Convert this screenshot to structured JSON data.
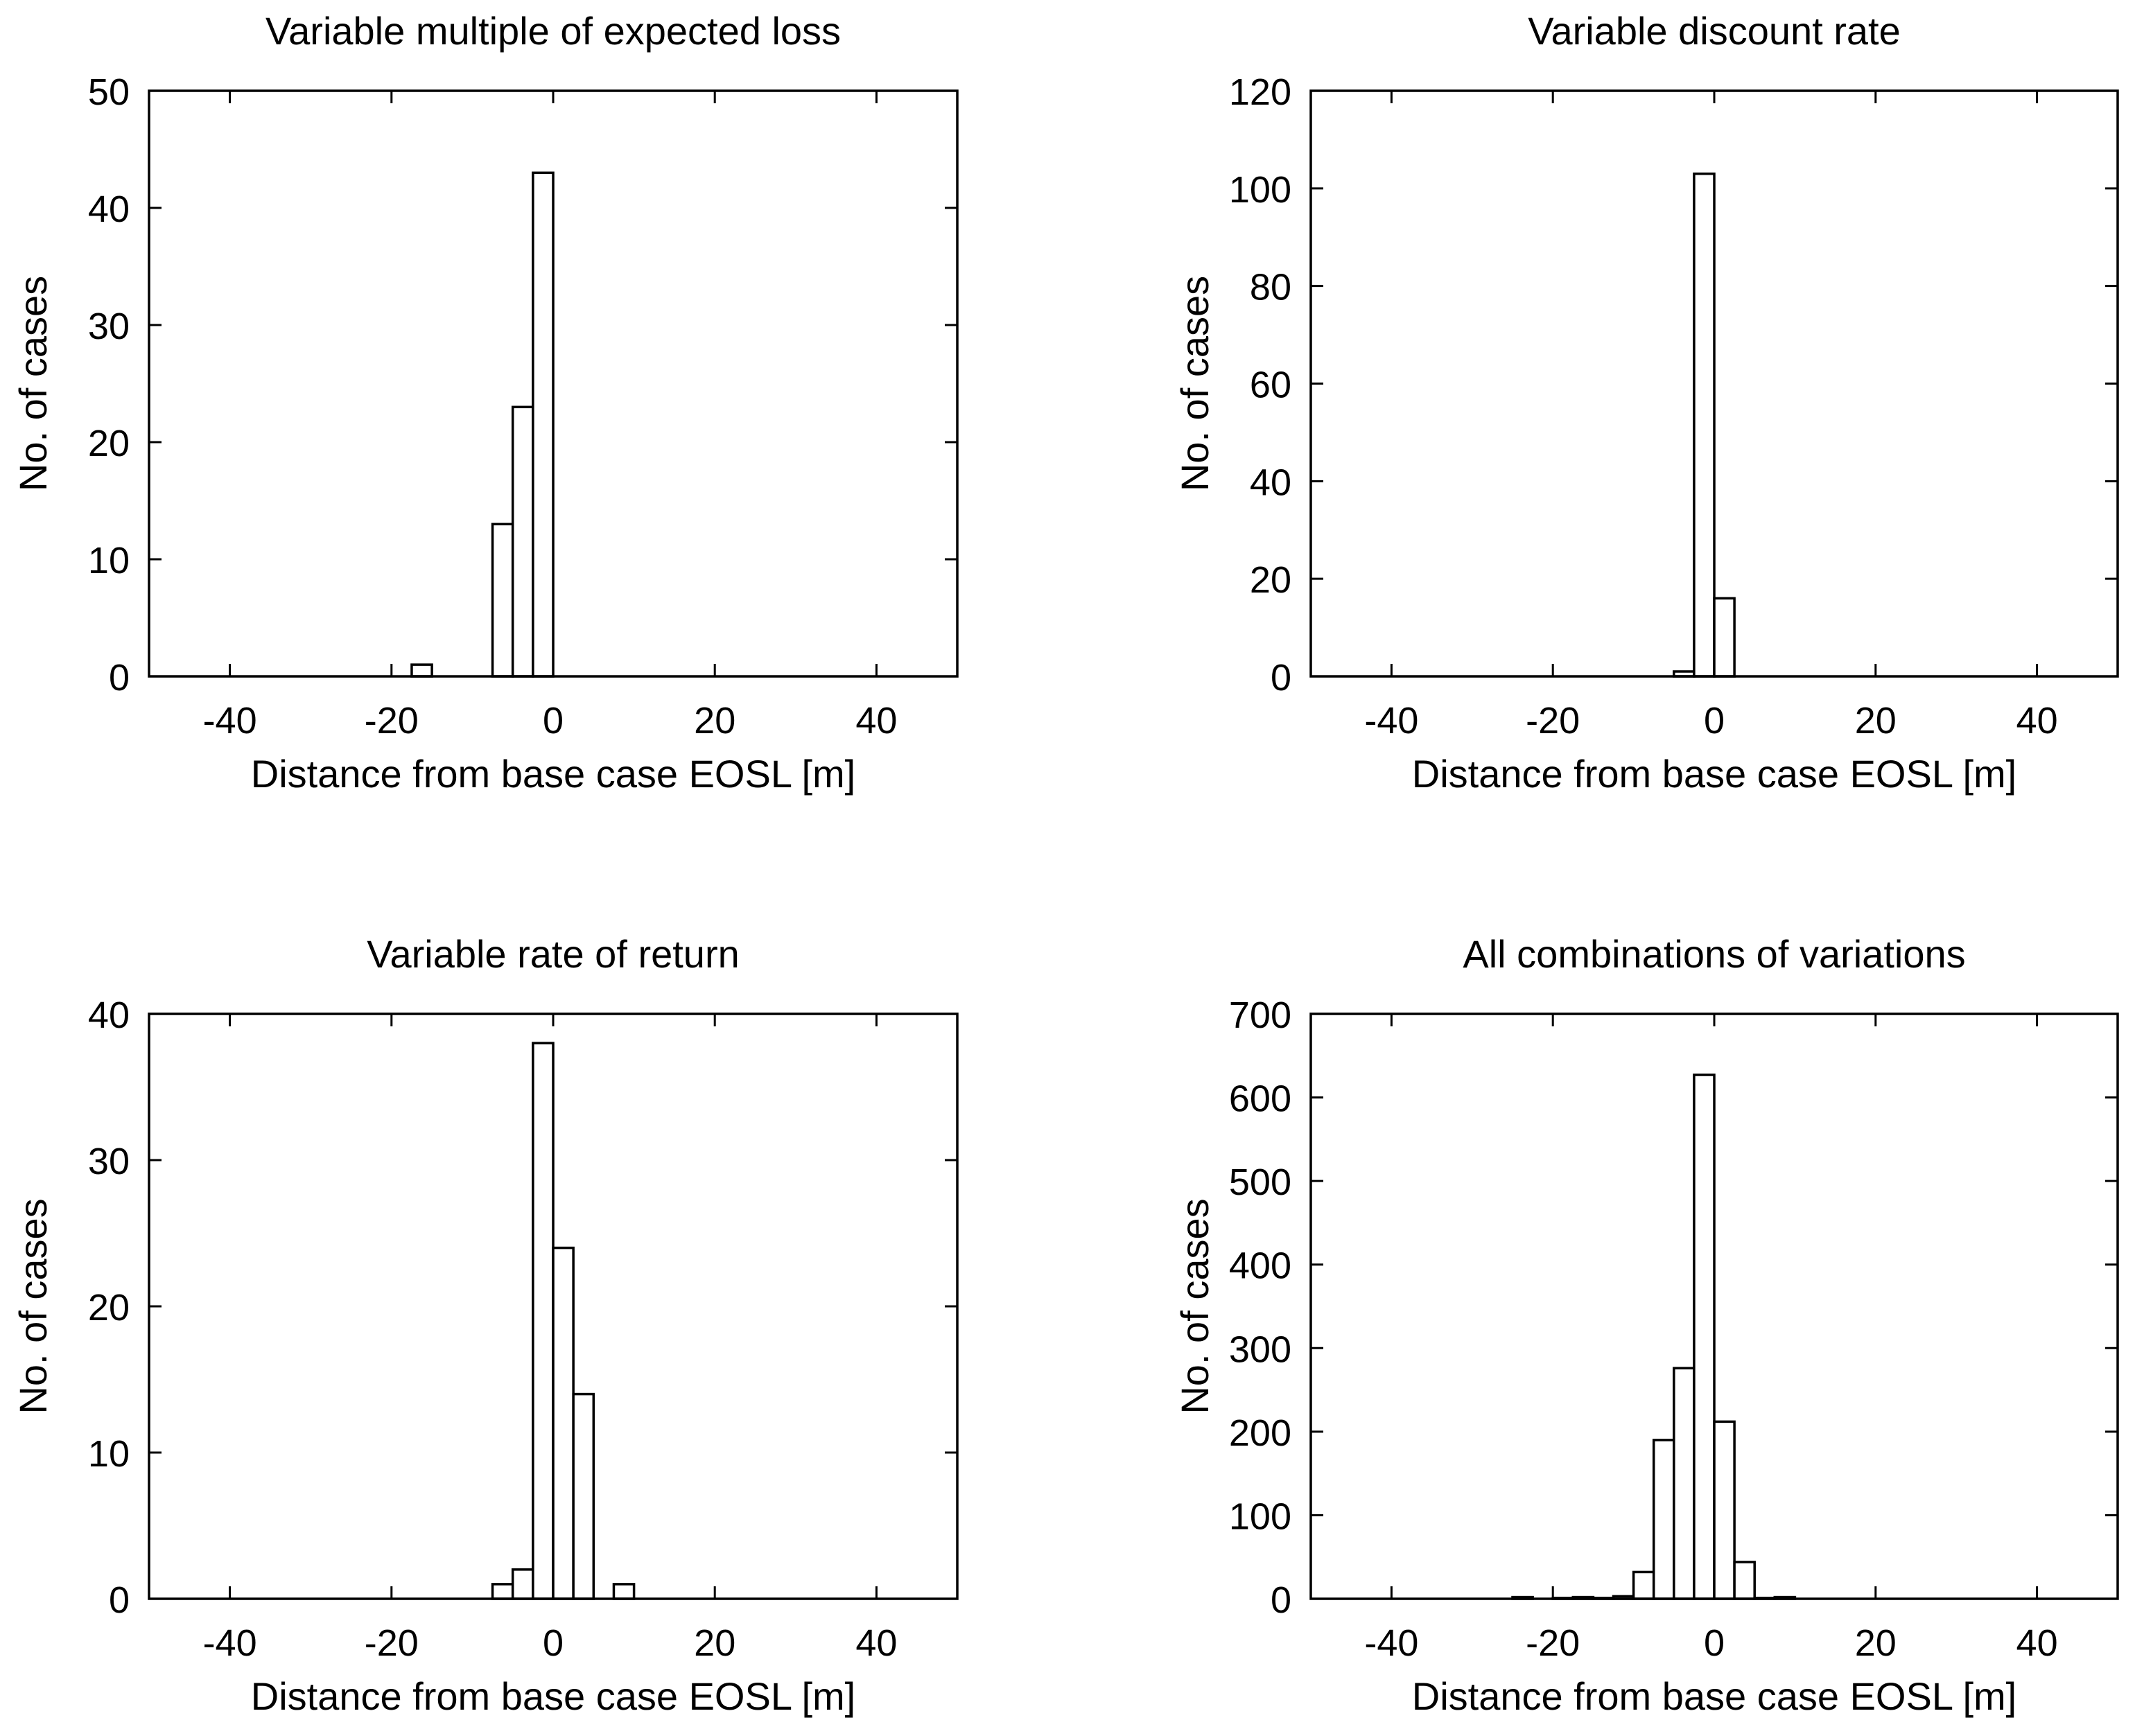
{
  "chart_data": [
    {
      "type": "bar",
      "title": "Variable multiple of expected loss",
      "xlabel": "Distance from base case EOSL [m]",
      "ylabel": "No. of cases",
      "xlim": [
        -50,
        50
      ],
      "ylim": [
        0,
        50
      ],
      "xticks": [
        -40,
        -20,
        0,
        20,
        40
      ],
      "yticks": [
        0,
        10,
        20,
        30,
        40,
        50
      ],
      "bin_width": 2.5,
      "bins": [
        {
          "x": -16.25,
          "value": 1
        },
        {
          "x": -6.25,
          "value": 13
        },
        {
          "x": -3.75,
          "value": 23
        },
        {
          "x": -1.25,
          "value": 43
        }
      ]
    },
    {
      "type": "bar",
      "title": "Variable discount rate",
      "xlabel": "Distance from base case EOSL [m]",
      "ylabel": "No. of cases",
      "xlim": [
        -50,
        50
      ],
      "ylim": [
        0,
        120
      ],
      "xticks": [
        -40,
        -20,
        0,
        20,
        40
      ],
      "yticks": [
        0,
        20,
        40,
        60,
        80,
        100,
        120
      ],
      "bin_width": 2.5,
      "bins": [
        {
          "x": -3.75,
          "value": 1
        },
        {
          "x": -1.25,
          "value": 103
        },
        {
          "x": 1.25,
          "value": 16
        }
      ]
    },
    {
      "type": "bar",
      "title": "Variable rate of return",
      "xlabel": "Distance from base case EOSL [m]",
      "ylabel": "No. of cases",
      "xlim": [
        -50,
        50
      ],
      "ylim": [
        0,
        40
      ],
      "xticks": [
        -40,
        -20,
        0,
        20,
        40
      ],
      "yticks": [
        0,
        10,
        20,
        30,
        40
      ],
      "bin_width": 2.5,
      "bins": [
        {
          "x": -6.25,
          "value": 1
        },
        {
          "x": -3.75,
          "value": 2
        },
        {
          "x": -1.25,
          "value": 38
        },
        {
          "x": 1.25,
          "value": 24
        },
        {
          "x": 3.75,
          "value": 14
        },
        {
          "x": 8.75,
          "value": 1
        }
      ]
    },
    {
      "type": "bar",
      "title": "All combinations of variations",
      "xlabel": "Distance from base case EOSL [m]",
      "ylabel": "No. of cases",
      "xlim": [
        -50,
        50
      ],
      "ylim": [
        0,
        700
      ],
      "xticks": [
        -40,
        -20,
        0,
        20,
        40
      ],
      "yticks": [
        0,
        100,
        200,
        300,
        400,
        500,
        600,
        700
      ],
      "bin_width": 2.5,
      "bins": [
        {
          "x": -23.75,
          "value": 2
        },
        {
          "x": -18.75,
          "value": 1
        },
        {
          "x": -16.25,
          "value": 2
        },
        {
          "x": -13.75,
          "value": 1
        },
        {
          "x": -11.25,
          "value": 3
        },
        {
          "x": -8.75,
          "value": 32
        },
        {
          "x": -6.25,
          "value": 190
        },
        {
          "x": -3.75,
          "value": 276
        },
        {
          "x": -1.25,
          "value": 627
        },
        {
          "x": 1.25,
          "value": 212
        },
        {
          "x": 3.75,
          "value": 44
        },
        {
          "x": 6.25,
          "value": 1
        },
        {
          "x": 8.75,
          "value": 2
        }
      ]
    }
  ]
}
